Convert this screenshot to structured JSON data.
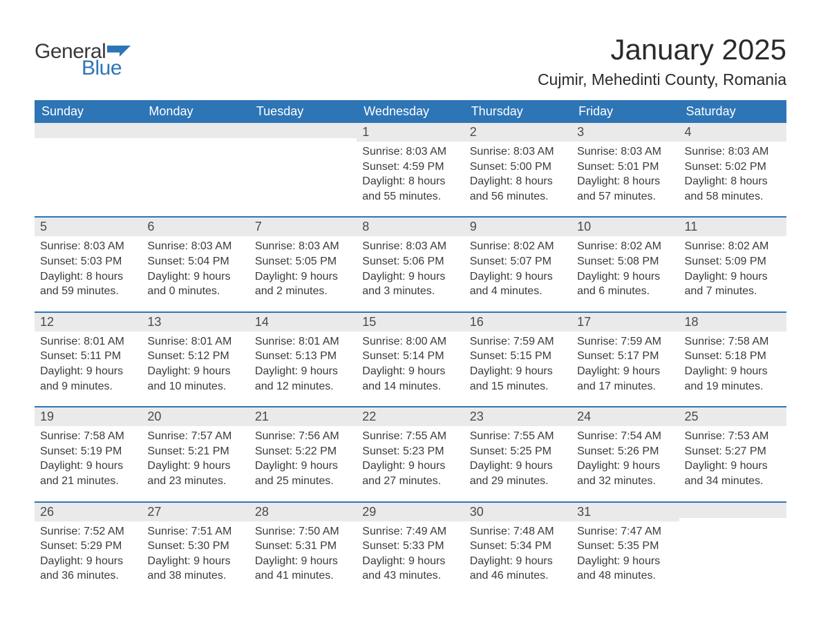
{
  "logo": {
    "general": "General",
    "blue": "Blue",
    "flag_color": "#2e75b6"
  },
  "header": {
    "month_title": "January 2025",
    "location": "Cujmir, Mehedinti County, Romania"
  },
  "colors": {
    "header_bg": "#2e75b6",
    "header_text": "#ffffff",
    "daynum_bg": "#eaeaea",
    "week_border": "#2e75b6",
    "body_text": "#3a3a3a",
    "page_bg": "#ffffff"
  },
  "typography": {
    "title_fontsize": 42,
    "location_fontsize": 23,
    "weekday_fontsize": 18,
    "daynum_fontsize": 18,
    "body_fontsize": 16,
    "font_family": "Arial"
  },
  "weekdays": [
    "Sunday",
    "Monday",
    "Tuesday",
    "Wednesday",
    "Thursday",
    "Friday",
    "Saturday"
  ],
  "weeks": [
    [
      {
        "day": "",
        "sunrise": "",
        "sunset": "",
        "daylight1": "",
        "daylight2": ""
      },
      {
        "day": "",
        "sunrise": "",
        "sunset": "",
        "daylight1": "",
        "daylight2": ""
      },
      {
        "day": "",
        "sunrise": "",
        "sunset": "",
        "daylight1": "",
        "daylight2": ""
      },
      {
        "day": "1",
        "sunrise": "Sunrise: 8:03 AM",
        "sunset": "Sunset: 4:59 PM",
        "daylight1": "Daylight: 8 hours",
        "daylight2": "and 55 minutes."
      },
      {
        "day": "2",
        "sunrise": "Sunrise: 8:03 AM",
        "sunset": "Sunset: 5:00 PM",
        "daylight1": "Daylight: 8 hours",
        "daylight2": "and 56 minutes."
      },
      {
        "day": "3",
        "sunrise": "Sunrise: 8:03 AM",
        "sunset": "Sunset: 5:01 PM",
        "daylight1": "Daylight: 8 hours",
        "daylight2": "and 57 minutes."
      },
      {
        "day": "4",
        "sunrise": "Sunrise: 8:03 AM",
        "sunset": "Sunset: 5:02 PM",
        "daylight1": "Daylight: 8 hours",
        "daylight2": "and 58 minutes."
      }
    ],
    [
      {
        "day": "5",
        "sunrise": "Sunrise: 8:03 AM",
        "sunset": "Sunset: 5:03 PM",
        "daylight1": "Daylight: 8 hours",
        "daylight2": "and 59 minutes."
      },
      {
        "day": "6",
        "sunrise": "Sunrise: 8:03 AM",
        "sunset": "Sunset: 5:04 PM",
        "daylight1": "Daylight: 9 hours",
        "daylight2": "and 0 minutes."
      },
      {
        "day": "7",
        "sunrise": "Sunrise: 8:03 AM",
        "sunset": "Sunset: 5:05 PM",
        "daylight1": "Daylight: 9 hours",
        "daylight2": "and 2 minutes."
      },
      {
        "day": "8",
        "sunrise": "Sunrise: 8:03 AM",
        "sunset": "Sunset: 5:06 PM",
        "daylight1": "Daylight: 9 hours",
        "daylight2": "and 3 minutes."
      },
      {
        "day": "9",
        "sunrise": "Sunrise: 8:02 AM",
        "sunset": "Sunset: 5:07 PM",
        "daylight1": "Daylight: 9 hours",
        "daylight2": "and 4 minutes."
      },
      {
        "day": "10",
        "sunrise": "Sunrise: 8:02 AM",
        "sunset": "Sunset: 5:08 PM",
        "daylight1": "Daylight: 9 hours",
        "daylight2": "and 6 minutes."
      },
      {
        "day": "11",
        "sunrise": "Sunrise: 8:02 AM",
        "sunset": "Sunset: 5:09 PM",
        "daylight1": "Daylight: 9 hours",
        "daylight2": "and 7 minutes."
      }
    ],
    [
      {
        "day": "12",
        "sunrise": "Sunrise: 8:01 AM",
        "sunset": "Sunset: 5:11 PM",
        "daylight1": "Daylight: 9 hours",
        "daylight2": "and 9 minutes."
      },
      {
        "day": "13",
        "sunrise": "Sunrise: 8:01 AM",
        "sunset": "Sunset: 5:12 PM",
        "daylight1": "Daylight: 9 hours",
        "daylight2": "and 10 minutes."
      },
      {
        "day": "14",
        "sunrise": "Sunrise: 8:01 AM",
        "sunset": "Sunset: 5:13 PM",
        "daylight1": "Daylight: 9 hours",
        "daylight2": "and 12 minutes."
      },
      {
        "day": "15",
        "sunrise": "Sunrise: 8:00 AM",
        "sunset": "Sunset: 5:14 PM",
        "daylight1": "Daylight: 9 hours",
        "daylight2": "and 14 minutes."
      },
      {
        "day": "16",
        "sunrise": "Sunrise: 7:59 AM",
        "sunset": "Sunset: 5:15 PM",
        "daylight1": "Daylight: 9 hours",
        "daylight2": "and 15 minutes."
      },
      {
        "day": "17",
        "sunrise": "Sunrise: 7:59 AM",
        "sunset": "Sunset: 5:17 PM",
        "daylight1": "Daylight: 9 hours",
        "daylight2": "and 17 minutes."
      },
      {
        "day": "18",
        "sunrise": "Sunrise: 7:58 AM",
        "sunset": "Sunset: 5:18 PM",
        "daylight1": "Daylight: 9 hours",
        "daylight2": "and 19 minutes."
      }
    ],
    [
      {
        "day": "19",
        "sunrise": "Sunrise: 7:58 AM",
        "sunset": "Sunset: 5:19 PM",
        "daylight1": "Daylight: 9 hours",
        "daylight2": "and 21 minutes."
      },
      {
        "day": "20",
        "sunrise": "Sunrise: 7:57 AM",
        "sunset": "Sunset: 5:21 PM",
        "daylight1": "Daylight: 9 hours",
        "daylight2": "and 23 minutes."
      },
      {
        "day": "21",
        "sunrise": "Sunrise: 7:56 AM",
        "sunset": "Sunset: 5:22 PM",
        "daylight1": "Daylight: 9 hours",
        "daylight2": "and 25 minutes."
      },
      {
        "day": "22",
        "sunrise": "Sunrise: 7:55 AM",
        "sunset": "Sunset: 5:23 PM",
        "daylight1": "Daylight: 9 hours",
        "daylight2": "and 27 minutes."
      },
      {
        "day": "23",
        "sunrise": "Sunrise: 7:55 AM",
        "sunset": "Sunset: 5:25 PM",
        "daylight1": "Daylight: 9 hours",
        "daylight2": "and 29 minutes."
      },
      {
        "day": "24",
        "sunrise": "Sunrise: 7:54 AM",
        "sunset": "Sunset: 5:26 PM",
        "daylight1": "Daylight: 9 hours",
        "daylight2": "and 32 minutes."
      },
      {
        "day": "25",
        "sunrise": "Sunrise: 7:53 AM",
        "sunset": "Sunset: 5:27 PM",
        "daylight1": "Daylight: 9 hours",
        "daylight2": "and 34 minutes."
      }
    ],
    [
      {
        "day": "26",
        "sunrise": "Sunrise: 7:52 AM",
        "sunset": "Sunset: 5:29 PM",
        "daylight1": "Daylight: 9 hours",
        "daylight2": "and 36 minutes."
      },
      {
        "day": "27",
        "sunrise": "Sunrise: 7:51 AM",
        "sunset": "Sunset: 5:30 PM",
        "daylight1": "Daylight: 9 hours",
        "daylight2": "and 38 minutes."
      },
      {
        "day": "28",
        "sunrise": "Sunrise: 7:50 AM",
        "sunset": "Sunset: 5:31 PM",
        "daylight1": "Daylight: 9 hours",
        "daylight2": "and 41 minutes."
      },
      {
        "day": "29",
        "sunrise": "Sunrise: 7:49 AM",
        "sunset": "Sunset: 5:33 PM",
        "daylight1": "Daylight: 9 hours",
        "daylight2": "and 43 minutes."
      },
      {
        "day": "30",
        "sunrise": "Sunrise: 7:48 AM",
        "sunset": "Sunset: 5:34 PM",
        "daylight1": "Daylight: 9 hours",
        "daylight2": "and 46 minutes."
      },
      {
        "day": "31",
        "sunrise": "Sunrise: 7:47 AM",
        "sunset": "Sunset: 5:35 PM",
        "daylight1": "Daylight: 9 hours",
        "daylight2": "and 48 minutes."
      },
      {
        "day": "",
        "sunrise": "",
        "sunset": "",
        "daylight1": "",
        "daylight2": ""
      }
    ]
  ]
}
